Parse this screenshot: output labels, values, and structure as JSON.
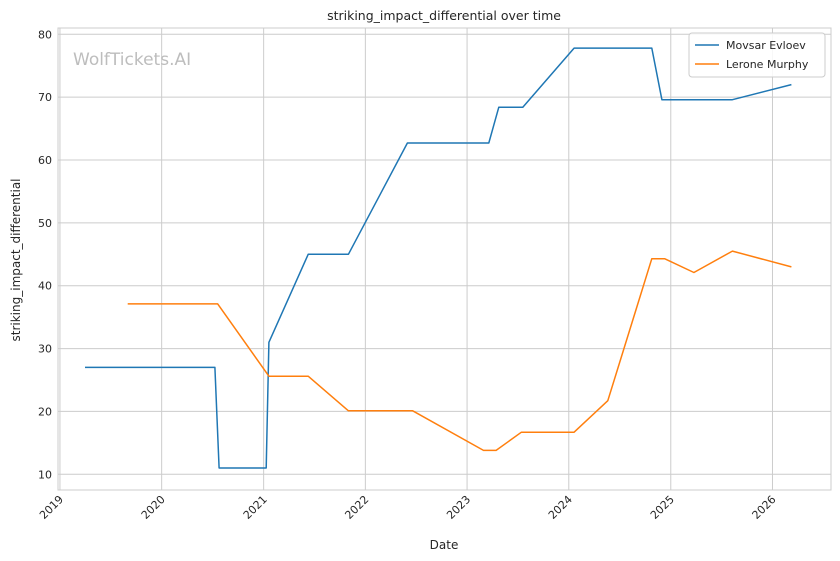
{
  "chart_data": {
    "type": "line",
    "title": "striking_impact_differential over time",
    "xlabel": "Date",
    "ylabel": "striking_impact_differential",
    "watermark": "WolfTickets.AI",
    "x_ticks": [
      "2019",
      "2020",
      "2021",
      "2022",
      "2023",
      "2024",
      "2025",
      "2026"
    ],
    "y_ticks": [
      10,
      20,
      30,
      40,
      50,
      60,
      70,
      80
    ],
    "xlim": [
      "2018-12-25",
      "2026-07-30"
    ],
    "ylim": [
      7.5,
      81
    ],
    "grid": true,
    "legend_position": "top-right",
    "series": [
      {
        "name": "Movsar Evloev",
        "color": "#1f77b4",
        "points": [
          [
            "2019-04-01",
            27.0
          ],
          [
            "2020-07-10",
            27.0
          ],
          [
            "2020-07-25",
            11.0
          ],
          [
            "2021-01-10",
            11.0
          ],
          [
            "2021-01-20",
            31.0
          ],
          [
            "2021-06-10",
            45.0
          ],
          [
            "2021-11-01",
            45.0
          ],
          [
            "2022-06-01",
            62.7
          ],
          [
            "2023-03-20",
            62.7
          ],
          [
            "2023-04-25",
            68.4
          ],
          [
            "2023-07-20",
            68.4
          ],
          [
            "2024-01-20",
            77.8
          ],
          [
            "2024-10-25",
            77.8
          ],
          [
            "2024-11-30",
            69.6
          ],
          [
            "2025-08-10",
            69.6
          ],
          [
            "2026-03-10",
            72.0
          ]
        ]
      },
      {
        "name": "Lerone Murphy",
        "color": "#ff7f0e",
        "points": [
          [
            "2019-09-01",
            37.1
          ],
          [
            "2020-07-20",
            37.1
          ],
          [
            "2021-01-20",
            25.6
          ],
          [
            "2021-06-10",
            25.6
          ],
          [
            "2021-11-01",
            20.1
          ],
          [
            "2022-06-20",
            20.1
          ],
          [
            "2023-03-01",
            13.8
          ],
          [
            "2023-04-15",
            13.8
          ],
          [
            "2023-07-15",
            16.7
          ],
          [
            "2024-01-20",
            16.7
          ],
          [
            "2024-05-20",
            21.7
          ],
          [
            "2024-10-25",
            44.3
          ],
          [
            "2024-12-10",
            44.3
          ],
          [
            "2025-03-25",
            42.1
          ],
          [
            "2025-08-10",
            45.5
          ],
          [
            "2026-03-10",
            43.0
          ]
        ]
      }
    ]
  }
}
